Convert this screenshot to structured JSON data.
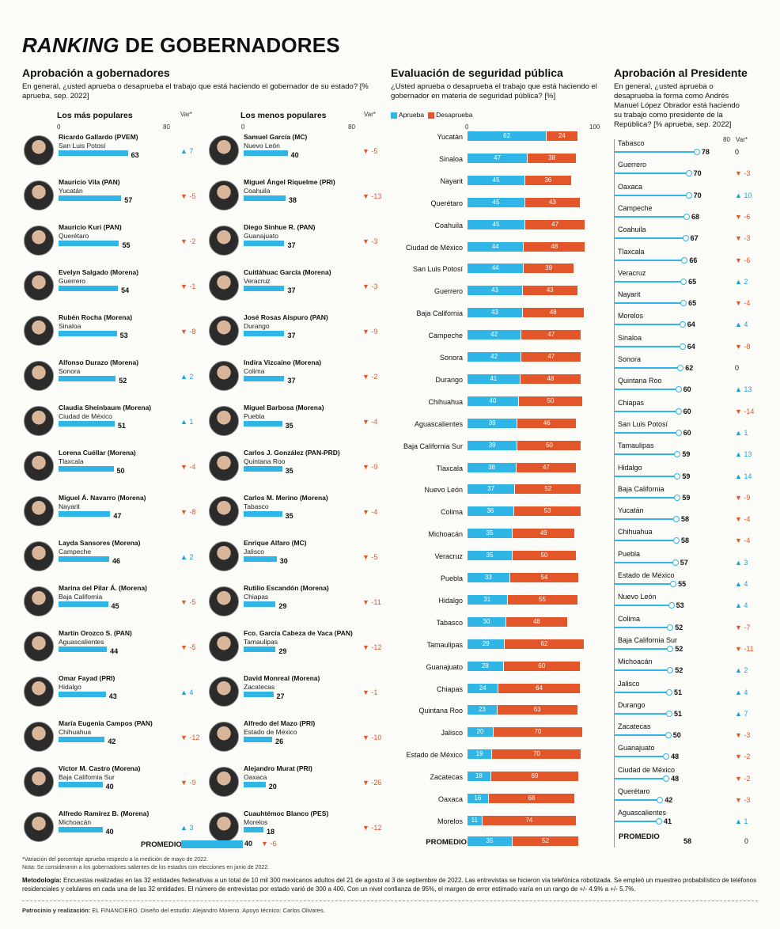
{
  "title_italic": "RANKING",
  "title_rest": " DE GOBERNADORES",
  "left": {
    "heading": "Aprobación a gobernadores",
    "question": "En general, ¿usted aprueba o desaprueba el trabajo que está haciendo el gobernador de su estado? [% aprueba, sep. 2022]",
    "popular_header": "Los más populares",
    "unpopular_header": "Los menos populares",
    "axis_max": "80",
    "var_header": "Var*",
    "promedio_label": "PROMEDIO",
    "promedio_value": "40",
    "promedio_var": "▼ -6"
  },
  "popular": [
    {
      "name": "Ricardo Gallardo (PVEM)",
      "state": "San Luis Potosí",
      "value": 63,
      "var": "▲ 7",
      "dir": "up"
    },
    {
      "name": "Mauricio Vila (PAN)",
      "state": "Yucatán",
      "value": 57,
      "var": "▼ -5",
      "dir": "dn"
    },
    {
      "name": "Mauricio Kuri (PAN)",
      "state": "Querétaro",
      "value": 55,
      "var": "▼ -2",
      "dir": "dn"
    },
    {
      "name": "Evelyn Salgado (Morena)",
      "state": "Guerrero",
      "value": 54,
      "var": "▼ -1",
      "dir": "dn"
    },
    {
      "name": "Rubén Rocha (Morena)",
      "state": "Sinaloa",
      "value": 53,
      "var": "▼ -8",
      "dir": "dn"
    },
    {
      "name": "Alfonso Durazo (Morena)",
      "state": "Sonora",
      "value": 52,
      "var": "▲ 2",
      "dir": "up"
    },
    {
      "name": "Claudia Sheinbaum (Morena)",
      "state": "Ciudad de México",
      "value": 51,
      "var": "▲ 1",
      "dir": "up"
    },
    {
      "name": "Lorena Cuéllar (Morena)",
      "state": "Tlaxcala",
      "value": 50,
      "var": "▼ -4",
      "dir": "dn"
    },
    {
      "name": "Miguel Á. Navarro (Morena)",
      "state": "Nayarit",
      "value": 47,
      "var": "▼ -8",
      "dir": "dn"
    },
    {
      "name": "Layda Sansores (Morena)",
      "state": "Campeche",
      "value": 46,
      "var": "▲ 2",
      "dir": "up"
    },
    {
      "name": "Marina del Pilar Á. (Morena)",
      "state": "Baja California",
      "value": 45,
      "var": "▼ -5",
      "dir": "dn"
    },
    {
      "name": "Martín Orozco S. (PAN)",
      "state": "Aguascalientes",
      "value": 44,
      "var": "▼ -5",
      "dir": "dn"
    },
    {
      "name": "Omar Fayad (PRI)",
      "state": "Hidalgo",
      "value": 43,
      "var": "▲ 4",
      "dir": "up"
    },
    {
      "name": "María Eugenia Campos (PAN)",
      "state": "Chihuahua",
      "value": 42,
      "var": "▼ -12",
      "dir": "dn"
    },
    {
      "name": "Víctor M. Castro (Morena)",
      "state": "Baja California Sur",
      "value": 40,
      "var": "▼ -9",
      "dir": "dn"
    },
    {
      "name": "Alfredo Ramírez B. (Morena)",
      "state": "Michoacán",
      "value": 40,
      "var": "▲ 3",
      "dir": "up"
    }
  ],
  "unpopular": [
    {
      "name": "Samuel García (MC)",
      "state": "Nuevo León",
      "value": 40,
      "var": "▼ -5",
      "dir": "dn"
    },
    {
      "name": "Miguel Ángel Riquelme (PRI)",
      "state": "Coahuila",
      "value": 38,
      "var": "▼ -13",
      "dir": "dn"
    },
    {
      "name": "Diego Sinhue R. (PAN)",
      "state": "Guanajuato",
      "value": 37,
      "var": "▼ -3",
      "dir": "dn"
    },
    {
      "name": "Cuitláhuac García (Morena)",
      "state": "Veracruz",
      "value": 37,
      "var": "▼ -3",
      "dir": "dn"
    },
    {
      "name": "José Rosas Aispuro (PAN)",
      "state": "Durango",
      "value": 37,
      "var": "▼ -9",
      "dir": "dn"
    },
    {
      "name": "Indira Vizcaíno (Morena)",
      "state": "Colima",
      "value": 37,
      "var": "▼ -2",
      "dir": "dn"
    },
    {
      "name": "Miguel Barbosa (Morena)",
      "state": "Puebla",
      "value": 35,
      "var": "▼ -4",
      "dir": "dn"
    },
    {
      "name": "Carlos J. González (PAN-PRD)",
      "state": "Quintana Roo",
      "value": 35,
      "var": "▼ -9",
      "dir": "dn"
    },
    {
      "name": "Carlos M. Merino (Morena)",
      "state": "Tabasco",
      "value": 35,
      "var": "▼ -4",
      "dir": "dn"
    },
    {
      "name": "Enrique Alfaro (MC)",
      "state": "Jalisco",
      "value": 30,
      "var": "▼ -5",
      "dir": "dn"
    },
    {
      "name": "Rutilio Escandón (Morena)",
      "state": "Chiapas",
      "value": 29,
      "var": "▼ -11",
      "dir": "dn"
    },
    {
      "name": "Fco. García Cabeza de Vaca (PAN)",
      "state": "Tamaulipas",
      "value": 29,
      "var": "▼ -12",
      "dir": "dn"
    },
    {
      "name": "David Monreal (Morena)",
      "state": "Zacatecas",
      "value": 27,
      "var": "▼ -1",
      "dir": "dn"
    },
    {
      "name": "Alfredo del Mazo (PRI)",
      "state": "Estado de México",
      "value": 26,
      "var": "▼ -10",
      "dir": "dn"
    },
    {
      "name": "Alejandro Murat (PRI)",
      "state": "Oaxaca",
      "value": 20,
      "var": "▼ -26",
      "dir": "dn"
    },
    {
      "name": "Cuauhtémoc Blanco (PES)",
      "state": "Morelos",
      "value": 18,
      "var": "▼ -12",
      "dir": "dn"
    }
  ],
  "middle": {
    "heading": "Evaluación de seguridad pública",
    "question": "¿Usted aprueba o desaprueba el trabajo que está haciendo el gobernador en materia de seguridad pública? [%]",
    "legend_approve": "Aprueba",
    "legend_disapprove": "Desaprueba",
    "tick0": "0",
    "tick100": "100",
    "promedio_label": "PROMEDIO",
    "promedio_approve": 35,
    "promedio_disapprove": 52
  },
  "security": [
    {
      "state": "Yucatán",
      "a": 62,
      "d": 24
    },
    {
      "state": "Sinaloa",
      "a": 47,
      "d": 38
    },
    {
      "state": "Nayarit",
      "a": 45,
      "d": 36
    },
    {
      "state": "Querétaro",
      "a": 45,
      "d": 43
    },
    {
      "state": "Coahuila",
      "a": 45,
      "d": 47
    },
    {
      "state": "Ciudad de México",
      "a": 44,
      "d": 48
    },
    {
      "state": "San Luis Potosí",
      "a": 44,
      "d": 39
    },
    {
      "state": "Guerrero",
      "a": 43,
      "d": 43
    },
    {
      "state": "Baja California",
      "a": 43,
      "d": 48
    },
    {
      "state": "Campeche",
      "a": 42,
      "d": 47
    },
    {
      "state": "Sonora",
      "a": 42,
      "d": 47
    },
    {
      "state": "Durango",
      "a": 41,
      "d": 48
    },
    {
      "state": "Chihuahua",
      "a": 40,
      "d": 50
    },
    {
      "state": "Aguascalientes",
      "a": 39,
      "d": 46
    },
    {
      "state": "Baja California Sur",
      "a": 39,
      "d": 50
    },
    {
      "state": "Tlaxcala",
      "a": 38,
      "d": 47
    },
    {
      "state": "Nuevo León",
      "a": 37,
      "d": 52
    },
    {
      "state": "Colima",
      "a": 36,
      "d": 53
    },
    {
      "state": "Michoacán",
      "a": 35,
      "d": 49
    },
    {
      "state": "Veracruz",
      "a": 35,
      "d": 50
    },
    {
      "state": "Puebla",
      "a": 33,
      "d": 54
    },
    {
      "state": "Hidalgo",
      "a": 31,
      "d": 55
    },
    {
      "state": "Tabasco",
      "a": 30,
      "d": 48
    },
    {
      "state": "Tamaulipas",
      "a": 29,
      "d": 62
    },
    {
      "state": "Guanajuato",
      "a": 28,
      "d": 60
    },
    {
      "state": "Chiapas",
      "a": 24,
      "d": 64
    },
    {
      "state": "Quintana Roo",
      "a": 23,
      "d": 63
    },
    {
      "state": "Jalisco",
      "a": 20,
      "d": 70
    },
    {
      "state": "Estado de México",
      "a": 19,
      "d": 70
    },
    {
      "state": "Zacatecas",
      "a": 18,
      "d": 69
    },
    {
      "state": "Oaxaca",
      "a": 16,
      "d": 68
    },
    {
      "state": "Morelos",
      "a": 11,
      "d": 74
    }
  ],
  "right": {
    "heading": "Aprobación al Presidente",
    "question": "En general, ¿usted aprueba o desaprueba la forma como Andrés Manuel López Obrador está haciendo su trabajo como presidente de la República? [% aprueba, sep. 2022]",
    "axis_max": "80",
    "var_header": "Var*",
    "promedio_label": "PROMEDIO",
    "promedio_value": "58",
    "promedio_var": "0"
  },
  "president": [
    {
      "state": "Tabasco",
      "value": 78,
      "var": "0",
      "dir": "eq"
    },
    {
      "state": "Guerrero",
      "value": 70,
      "var": "▼ -3",
      "dir": "dn"
    },
    {
      "state": "Oaxaca",
      "value": 70,
      "var": "▲ 10",
      "dir": "up"
    },
    {
      "state": "Campeche",
      "value": 68,
      "var": "▼ -6",
      "dir": "dn"
    },
    {
      "state": "Coahuila",
      "value": 67,
      "var": "▼ -3",
      "dir": "dn"
    },
    {
      "state": "Tlaxcala",
      "value": 66,
      "var": "▼ -6",
      "dir": "dn"
    },
    {
      "state": "Veracruz",
      "value": 65,
      "var": "▲ 2",
      "dir": "up"
    },
    {
      "state": "Nayarit",
      "value": 65,
      "var": "▼ -4",
      "dir": "dn"
    },
    {
      "state": "Morelos",
      "value": 64,
      "var": "▲ 4",
      "dir": "up"
    },
    {
      "state": "Sinaloa",
      "value": 64,
      "var": "▼ -8",
      "dir": "dn"
    },
    {
      "state": "Sonora",
      "value": 62,
      "var": "0",
      "dir": "eq"
    },
    {
      "state": "Quintana Roo",
      "value": 60,
      "var": "▲ 13",
      "dir": "up"
    },
    {
      "state": "Chiapas",
      "value": 60,
      "var": "▼ -14",
      "dir": "dn"
    },
    {
      "state": "San Luis Potosí",
      "value": 60,
      "var": "▲ 1",
      "dir": "up"
    },
    {
      "state": "Tamaulipas",
      "value": 59,
      "var": "▲ 13",
      "dir": "up"
    },
    {
      "state": "Hidalgo",
      "value": 59,
      "var": "▲ 14",
      "dir": "up"
    },
    {
      "state": "Baja California",
      "value": 59,
      "var": "▼ -9",
      "dir": "dn"
    },
    {
      "state": "Yucatán",
      "value": 58,
      "var": "▼ -4",
      "dir": "dn"
    },
    {
      "state": "Chihuahua",
      "value": 58,
      "var": "▼ -4",
      "dir": "dn"
    },
    {
      "state": "Puebla",
      "value": 57,
      "var": "▲ 3",
      "dir": "up"
    },
    {
      "state": "Estado de México",
      "value": 55,
      "var": "▲ 4",
      "dir": "up"
    },
    {
      "state": "Nuevo León",
      "value": 53,
      "var": "▲ 4",
      "dir": "up"
    },
    {
      "state": "Colima",
      "value": 52,
      "var": "▼ -7",
      "dir": "dn"
    },
    {
      "state": "Baja California Sur",
      "value": 52,
      "var": "▼ -11",
      "dir": "dn"
    },
    {
      "state": "Michoacán",
      "value": 52,
      "var": "▲ 2",
      "dir": "up"
    },
    {
      "state": "Jalisco",
      "value": 51,
      "var": "▲ 4",
      "dir": "up"
    },
    {
      "state": "Durango",
      "value": 51,
      "var": "▲ 7",
      "dir": "up"
    },
    {
      "state": "Zacatecas",
      "value": 50,
      "var": "▼ -3",
      "dir": "dn"
    },
    {
      "state": "Guanajuato",
      "value": 48,
      "var": "▼ -2",
      "dir": "dn"
    },
    {
      "state": "Ciudad de México",
      "value": 48,
      "var": "▼ -2",
      "dir": "dn"
    },
    {
      "state": "Querétaro",
      "value": 42,
      "var": "▼ -3",
      "dir": "dn"
    },
    {
      "state": "Aguascalientes",
      "value": 41,
      "var": "▲ 1",
      "dir": "up"
    }
  ],
  "footer": {
    "note1": "*Variación del porcentaje aprueba respecto a la medición de mayo de 2022.",
    "note2": "Nota: Se consideraron a los gobernadores salientes de los estados con elecciones en junio de 2022.",
    "method_label": "Metodología:",
    "method_text": " Encuestas realizadas en las 32 entidades federativas a un total de 10 mil 300 mexicanos adultos del 21 de agosto al 3 de septiembre de 2022. Las entrevistas se hicieron vía telefónica robotizada. Se empleó un muestreo probabilístico de teléfonos residenciales y celulares en cada una de las 32 entidades. El número de entrevistas por estado varió de 300 a 400. Con un nivel confianza de 95%, el margen de error estimado varía en un rango de +/- 4.9% a +/- 5.7%.",
    "credits_label": "Patrocinio y realización:",
    "credits_text": " EL FINANCIERO. Diseño del estudio: Alejandro Moreno. Apoyo técnico: Carlos Olivares."
  },
  "colors": {
    "approve": "#2fb5e6",
    "disapprove": "#e2562a"
  },
  "chart_data": [
    {
      "type": "bar",
      "title": "Aprobación a gobernadores",
      "subtitle": "Los más populares",
      "xlim": [
        0,
        80
      ]
    },
    {
      "type": "bar",
      "title": "Aprobación a gobernadores",
      "subtitle": "Los menos populares",
      "xlim": [
        0,
        80
      ]
    },
    {
      "type": "bar",
      "title": "Evaluación de seguridad pública",
      "series_names": [
        "Aprueba",
        "Desaprueba"
      ],
      "xlim": [
        0,
        100
      ]
    },
    {
      "type": "scatter",
      "title": "Aprobación al Presidente",
      "xlim": [
        0,
        80
      ]
    }
  ]
}
